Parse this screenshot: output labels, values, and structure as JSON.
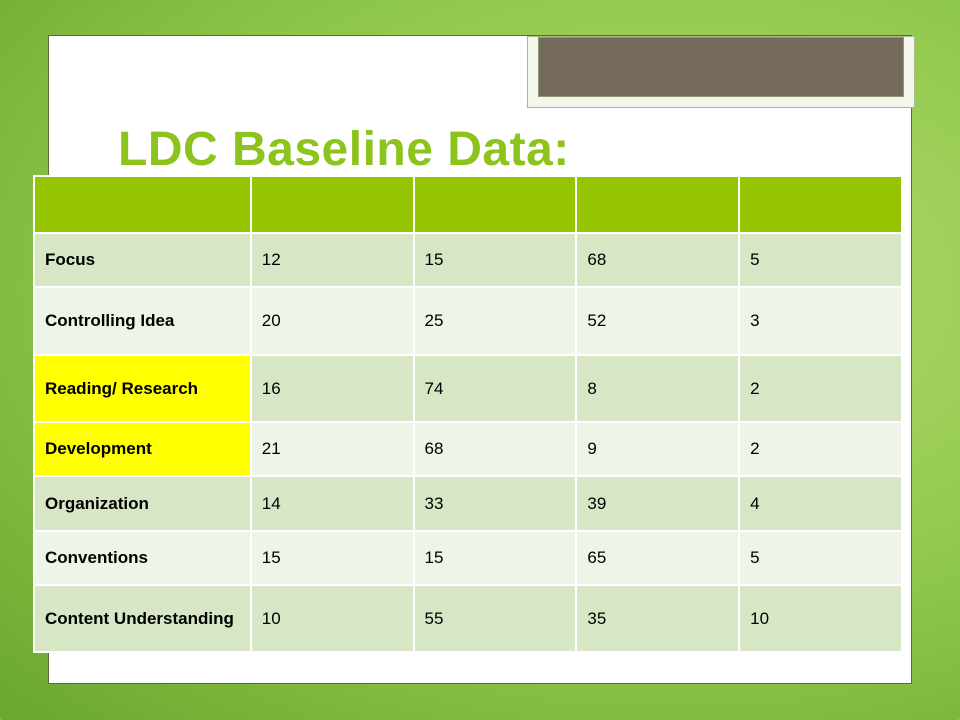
{
  "title": "LDC Baseline Data:",
  "table": {
    "header": [
      "",
      "",
      "",
      "",
      ""
    ],
    "rows": [
      {
        "label": "Focus",
        "values": [
          "12",
          "15",
          "68",
          "5"
        ],
        "highlight": false
      },
      {
        "label": "Controlling Idea",
        "values": [
          "20",
          "25",
          "52",
          "3"
        ],
        "highlight": false
      },
      {
        "label": "Reading/ Research",
        "values": [
          "16",
          "74",
          "8",
          "2"
        ],
        "highlight": true
      },
      {
        "label": "Development",
        "values": [
          "21",
          "68",
          "9",
          "2"
        ],
        "highlight": true
      },
      {
        "label": "Organization",
        "values": [
          "14",
          "33",
          "39",
          "4"
        ],
        "highlight": false
      },
      {
        "label": "Conventions",
        "values": [
          "15",
          "15",
          "65",
          "5"
        ],
        "highlight": false
      },
      {
        "label": "Content Understanding",
        "values": [
          "10",
          "55",
          "35",
          "10"
        ],
        "highlight": false
      }
    ]
  },
  "colors": {
    "title": "#8cc31d",
    "header_fill": "#94c500",
    "row_fill_a": "#d7e7c6",
    "row_fill_b": "#eef4e8",
    "highlight": "#ffff00"
  }
}
